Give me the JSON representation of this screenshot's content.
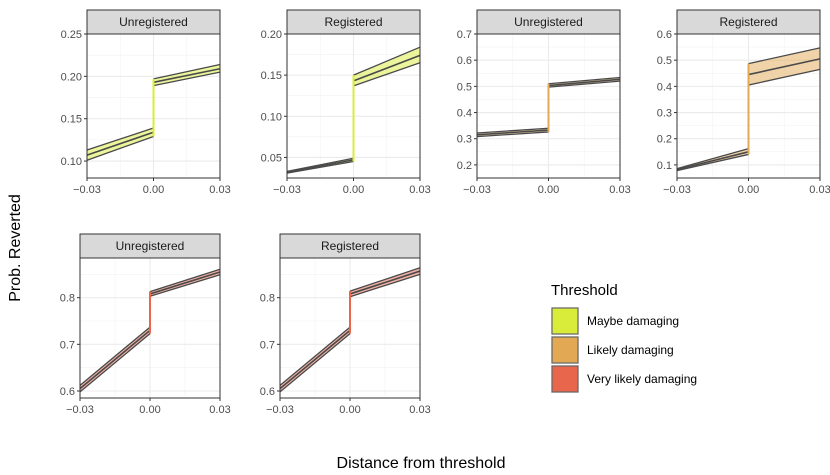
{
  "figure": {
    "xlabel": "Distance from threshold",
    "ylabel": "Prob. Reverted"
  },
  "legend": {
    "title": "Threshold",
    "placement": "right",
    "entries": [
      {
        "label": "Maybe damaging",
        "color": "#d9ec3a"
      },
      {
        "label": "Likely damaging",
        "color": "#e2a854"
      },
      {
        "label": "Very likely damaging",
        "color": "#e8664c"
      }
    ]
  },
  "chart_data": [
    {
      "type": "line",
      "panel": 1,
      "threshold": "Maybe damaging",
      "color": "#d9ec3a",
      "title": "Unregistered",
      "xlim": [
        -0.03,
        0.03
      ],
      "ylim": [
        0.08,
        0.25
      ],
      "xticks": [
        "-0.03",
        "0.00",
        "0.03"
      ],
      "yticks": [
        0.1,
        0.15,
        0.2,
        0.25
      ],
      "ytick_labels": [
        "0.10",
        "0.15",
        "0.20",
        "0.25"
      ],
      "left": {
        "x": [
          -0.03,
          0
        ],
        "mean": [
          0.107,
          0.134
        ],
        "lower": [
          0.101,
          0.129
        ],
        "upper": [
          0.113,
          0.139
        ]
      },
      "right": {
        "x": [
          0,
          0.03
        ],
        "mean": [
          0.193,
          0.209
        ],
        "lower": [
          0.189,
          0.205
        ],
        "upper": [
          0.197,
          0.214
        ]
      }
    },
    {
      "type": "line",
      "panel": 2,
      "threshold": "Maybe damaging",
      "color": "#d9ec3a",
      "title": "Registered",
      "xlim": [
        -0.03,
        0.03
      ],
      "ylim": [
        0.025,
        0.2
      ],
      "xticks": [
        "-0.03",
        "0.00",
        "0.03"
      ],
      "yticks": [
        0.05,
        0.1,
        0.15,
        0.2
      ],
      "ytick_labels": [
        "0.05",
        "0.10",
        "0.15",
        "0.20"
      ],
      "left": {
        "x": [
          -0.03,
          0
        ],
        "mean": [
          0.032,
          0.047
        ],
        "lower": [
          0.031,
          0.045
        ],
        "upper": [
          0.033,
          0.049
        ]
      },
      "right": {
        "x": [
          0,
          0.03
        ],
        "mean": [
          0.143,
          0.174
        ],
        "lower": [
          0.137,
          0.165
        ],
        "upper": [
          0.15,
          0.184
        ]
      }
    },
    {
      "type": "line",
      "panel": 3,
      "threshold": "Likely damaging",
      "color": "#e2a854",
      "title": "Unregistered",
      "xlim": [
        -0.03,
        0.03
      ],
      "ylim": [
        0.15,
        0.7
      ],
      "xticks": [
        "-0.03",
        "0.00",
        "0.03"
      ],
      "yticks": [
        0.2,
        0.3,
        0.4,
        0.5,
        0.6,
        0.7
      ],
      "ytick_labels": [
        "0.2",
        "0.3",
        "0.4",
        "0.5",
        "0.6",
        "0.7"
      ],
      "left": {
        "x": [
          -0.03,
          0
        ],
        "mean": [
          0.315,
          0.333
        ],
        "lower": [
          0.308,
          0.326
        ],
        "upper": [
          0.322,
          0.34
        ]
      },
      "right": {
        "x": [
          0,
          0.03
        ],
        "mean": [
          0.503,
          0.527
        ],
        "lower": [
          0.497,
          0.52
        ],
        "upper": [
          0.51,
          0.534
        ]
      }
    },
    {
      "type": "line",
      "panel": 4,
      "threshold": "Likely damaging",
      "color": "#e2a854",
      "title": "Registered",
      "xlim": [
        -0.03,
        0.03
      ],
      "ylim": [
        0.05,
        0.6
      ],
      "xticks": [
        "-0.03",
        "0.00",
        "0.03"
      ],
      "yticks": [
        0.1,
        0.2,
        0.3,
        0.4,
        0.5,
        0.6
      ],
      "ytick_labels": [
        "0.1",
        "0.2",
        "0.3",
        "0.4",
        "0.5",
        "0.6"
      ],
      "left": {
        "x": [
          -0.03,
          0
        ],
        "mean": [
          0.082,
          0.15
        ],
        "lower": [
          0.078,
          0.14
        ],
        "upper": [
          0.086,
          0.162
        ]
      },
      "right": {
        "x": [
          0,
          0.03
        ],
        "mean": [
          0.445,
          0.505
        ],
        "lower": [
          0.405,
          0.465
        ],
        "upper": [
          0.487,
          0.547
        ]
      }
    },
    {
      "type": "line",
      "panel": 5,
      "threshold": "Very likely damaging",
      "color": "#e8664c",
      "title": "Unregistered",
      "xlim": [
        -0.03,
        0.03
      ],
      "ylim": [
        0.585,
        0.885
      ],
      "xticks": [
        "-0.03",
        "0.00",
        "0.03"
      ],
      "yticks": [
        0.6,
        0.7,
        0.8
      ],
      "ytick_labels": [
        "0.6",
        "0.7",
        "0.8"
      ],
      "left": {
        "x": [
          -0.03,
          0
        ],
        "mean": [
          0.605,
          0.73
        ],
        "lower": [
          0.598,
          0.723
        ],
        "upper": [
          0.612,
          0.737
        ]
      },
      "right": {
        "x": [
          0,
          0.03
        ],
        "mean": [
          0.808,
          0.855
        ],
        "lower": [
          0.803,
          0.849
        ],
        "upper": [
          0.813,
          0.861
        ]
      }
    },
    {
      "type": "line",
      "panel": 6,
      "threshold": "Very likely damaging",
      "color": "#e8664c",
      "title": "Registered",
      "xlim": [
        -0.03,
        0.03
      ],
      "ylim": [
        0.585,
        0.885
      ],
      "xticks": [
        "-0.03",
        "0.00",
        "0.03"
      ],
      "yticks": [
        0.6,
        0.7,
        0.8
      ],
      "ytick_labels": [
        "0.6",
        "0.7",
        "0.8"
      ],
      "left": {
        "x": [
          -0.03,
          0
        ],
        "mean": [
          0.605,
          0.73
        ],
        "lower": [
          0.598,
          0.723
        ],
        "upper": [
          0.612,
          0.737
        ]
      },
      "right": {
        "x": [
          0,
          0.03
        ],
        "mean": [
          0.808,
          0.857
        ],
        "lower": [
          0.802,
          0.85
        ],
        "upper": [
          0.814,
          0.864
        ]
      }
    }
  ]
}
